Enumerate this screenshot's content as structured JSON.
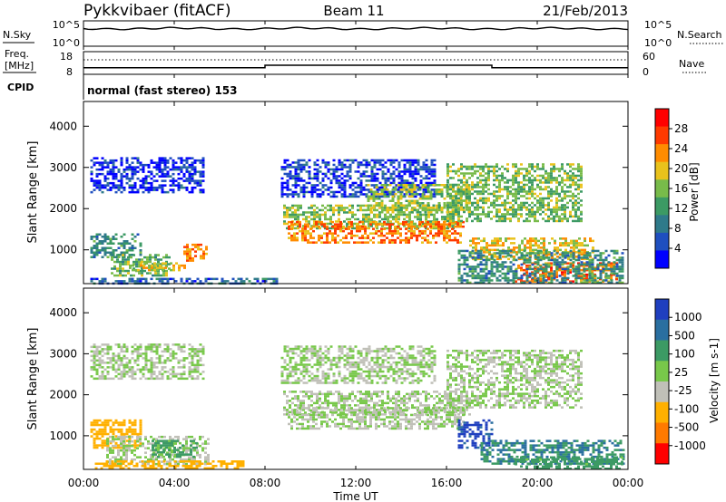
{
  "header": {
    "station": "Pykkvibaer (fitACF)",
    "beam": "Beam 11",
    "date": "21/Feb/2013"
  },
  "noise_panel": {
    "left_label": "N.Sky",
    "right_label": "N.Search",
    "left_ticks": [
      "10^5",
      "10^0"
    ],
    "right_ticks": [
      "10^5",
      "10^0"
    ]
  },
  "freq_panel": {
    "left_label_1": "Freq.",
    "left_label_2": "[MHz]",
    "right_label": "Nave",
    "left_ticks": [
      "18",
      "8"
    ],
    "right_ticks": [
      "60",
      "0"
    ],
    "freq_values": [
      {
        "t": 0,
        "f": 10.5
      },
      {
        "t": 8,
        "f": 10.5
      },
      {
        "t": 8,
        "f": 11.8
      },
      {
        "t": 18,
        "f": 11.8
      },
      {
        "t": 18,
        "f": 10.5
      },
      {
        "t": 24,
        "f": 10.5
      }
    ]
  },
  "cpid": {
    "label": "CPID",
    "mode": "normal (fast stereo) 153"
  },
  "time_axis": {
    "label": "Time UT",
    "ticks": [
      "00:00",
      "04:00",
      "08:00",
      "12:00",
      "16:00",
      "20:00",
      "00:00"
    ]
  },
  "power_panel": {
    "ylabel": "Slant Range [km]",
    "yticks": [
      "4000",
      "3000",
      "2000",
      "1000"
    ],
    "colorbar_label": "Power [dB]",
    "colorbar_ticks": [
      "28",
      "24",
      "20",
      "16",
      "12",
      "8",
      "4"
    ]
  },
  "velocity_panel": {
    "ylabel": "Slant Range [km]",
    "yticks": [
      "4000",
      "3000",
      "2000",
      "1000"
    ],
    "colorbar_label": "Velocity [m s-1]",
    "colorbar_ticks": [
      "1000",
      "500",
      "100",
      "25",
      "-25",
      "-100",
      "-500",
      "-1000"
    ]
  },
  "chart_data": [
    {
      "type": "heatmap",
      "title": "Power [dB]",
      "xlabel": "Time UT",
      "ylabel": "Slant Range [km]",
      "xlim": [
        0,
        24
      ],
      "ylim": [
        180,
        4600
      ],
      "color_scale": {
        "values": [
          0,
          4,
          8,
          12,
          16,
          20,
          24,
          28,
          32
        ],
        "colors": [
          "#0000ff",
          "#1f4fbf",
          "#2f7a8a",
          "#3c9a64",
          "#78bb4a",
          "#e9c21c",
          "#ff8c00",
          "#ff3a00",
          "#ff0000"
        ]
      },
      "regions": [
        {
          "t0": 0.3,
          "t1": 5.3,
          "r0": 2400,
          "r1": 3250,
          "p": 4
        },
        {
          "t0": 0.3,
          "t1": 2.5,
          "r0": 800,
          "r1": 1400,
          "p": 12
        },
        {
          "t0": 1.2,
          "t1": 3.8,
          "r0": 400,
          "r1": 900,
          "p": 16
        },
        {
          "t0": 2.0,
          "t1": 4.5,
          "r0": 500,
          "r1": 700,
          "p": 22
        },
        {
          "t0": 4.4,
          "t1": 5.4,
          "r0": 750,
          "r1": 1150,
          "p": 26
        },
        {
          "t0": 0.3,
          "t1": 8.5,
          "r0": 200,
          "r1": 320,
          "p": 8
        },
        {
          "t0": 8.7,
          "t1": 15.5,
          "r0": 2300,
          "r1": 3200,
          "p": 5
        },
        {
          "t0": 8.8,
          "t1": 16.5,
          "r0": 1500,
          "r1": 2100,
          "p": 18
        },
        {
          "t0": 9.0,
          "t1": 16.8,
          "r0": 1200,
          "r1": 1700,
          "p": 27
        },
        {
          "t0": 12.5,
          "t1": 17.0,
          "r0": 1900,
          "r1": 2600,
          "p": 19
        },
        {
          "t0": 16.0,
          "t1": 22.0,
          "r0": 1700,
          "r1": 3100,
          "p": 17
        },
        {
          "t0": 17.0,
          "t1": 22.5,
          "r0": 800,
          "r1": 1300,
          "p": 22
        },
        {
          "t0": 19.0,
          "t1": 23.5,
          "r0": 250,
          "r1": 700,
          "p": 28
        },
        {
          "t0": 16.5,
          "t1": 23.8,
          "r0": 200,
          "r1": 1000,
          "p": 12
        }
      ]
    },
    {
      "type": "heatmap",
      "title": "Velocity [m s-1]",
      "xlabel": "Time UT",
      "ylabel": "Slant Range [km]",
      "xlim": [
        0,
        24
      ],
      "ylim": [
        180,
        4600
      ],
      "color_scale": {
        "values": [
          1000,
          500,
          100,
          25,
          -25,
          -100,
          -500,
          -1000
        ],
        "colors": [
          "#1f3fbf",
          "#2a6fa0",
          "#3c9a64",
          "#78c84a",
          "#c0c0b8",
          "#ffb000",
          "#ff7a00",
          "#ff0000"
        ]
      },
      "regions": [
        {
          "t0": 0.3,
          "t1": 5.3,
          "r0": 2400,
          "r1": 3250,
          "v": 0
        },
        {
          "t0": 0.3,
          "t1": 2.5,
          "r0": 700,
          "r1": 1400,
          "v": -150
        },
        {
          "t0": 1.0,
          "t1": 5.5,
          "r0": 300,
          "r1": 1000,
          "v": 0
        },
        {
          "t0": 3.0,
          "t1": 5.0,
          "r0": 500,
          "r1": 900,
          "v": 80
        },
        {
          "t0": 0.5,
          "t1": 7.0,
          "r0": 200,
          "r1": 400,
          "v": -150
        },
        {
          "t0": 8.7,
          "t1": 15.5,
          "r0": 2300,
          "r1": 3200,
          "v": 0
        },
        {
          "t0": 8.8,
          "t1": 17.0,
          "r0": 1500,
          "r1": 2100,
          "v": 0
        },
        {
          "t0": 9.0,
          "t1": 16.8,
          "r0": 1200,
          "r1": 1700,
          "v": 0
        },
        {
          "t0": 16.0,
          "t1": 22.0,
          "r0": 1700,
          "r1": 3100,
          "v": 0
        },
        {
          "t0": 16.5,
          "t1": 18.0,
          "r0": 700,
          "r1": 1400,
          "v": 1000
        },
        {
          "t0": 17.5,
          "t1": 23.8,
          "r0": 300,
          "r1": 900,
          "v": 300
        },
        {
          "t0": 19.0,
          "t1": 23.8,
          "r0": 200,
          "r1": 500,
          "v": 100
        }
      ]
    }
  ]
}
